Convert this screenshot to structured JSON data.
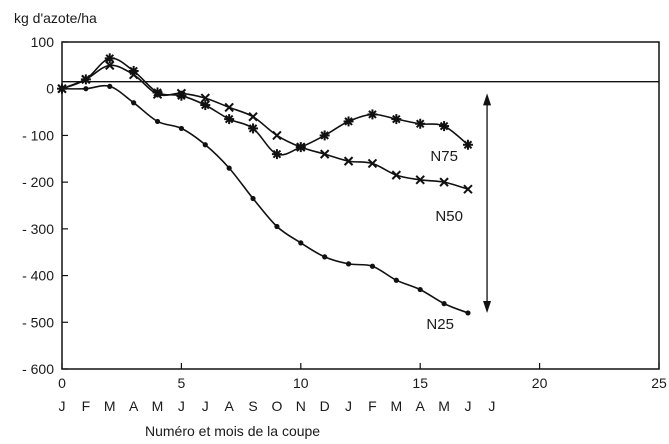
{
  "chart_data": {
    "type": "line",
    "title": "",
    "ylabel": "kg d'azote/ha",
    "xlabel": "Numéro et mois de la coupe",
    "xlim": [
      0,
      25
    ],
    "ylim": [
      -600,
      100
    ],
    "xticks": [
      0,
      5,
      10,
      15,
      20,
      25
    ],
    "yticks": [
      100,
      0,
      -100,
      -200,
      -300,
      -400,
      -500,
      -600
    ],
    "ytick_labels": [
      "100",
      "0",
      "- 100",
      "- 200",
      "- 300",
      "- 400",
      "- 500",
      "- 600"
    ],
    "months": [
      "J",
      "F",
      "M",
      "A",
      "M",
      "J",
      "J",
      "A",
      "S",
      "O",
      "N",
      "D",
      "J",
      "F",
      "M",
      "A",
      "M",
      "J",
      "J"
    ],
    "reference_line_y": 15,
    "range_arrow": {
      "x": 17.8,
      "y_top": -10,
      "y_bottom": -480
    },
    "grid": false,
    "series": [
      {
        "name": "N75",
        "marker": "star",
        "x": [
          0,
          1,
          2,
          3,
          4,
          5,
          6,
          7,
          8,
          9,
          10,
          11,
          12,
          13,
          14,
          15,
          16,
          17
        ],
        "y": [
          0,
          20,
          65,
          38,
          -8,
          -15,
          -35,
          -65,
          -85,
          -140,
          -125,
          -100,
          -70,
          -55,
          -65,
          -75,
          -80,
          -120
        ]
      },
      {
        "name": "N50",
        "marker": "cross",
        "x": [
          0,
          1,
          2,
          3,
          4,
          5,
          6,
          7,
          8,
          9,
          10,
          11,
          12,
          13,
          14,
          15,
          16,
          17
        ],
        "y": [
          0,
          20,
          50,
          30,
          -12,
          -10,
          -20,
          -40,
          -60,
          -100,
          -125,
          -140,
          -155,
          -160,
          -185,
          -195,
          -200,
          -215
        ]
      },
      {
        "name": "N25",
        "marker": "dot",
        "x": [
          0,
          1,
          2,
          3,
          4,
          5,
          6,
          7,
          8,
          9,
          10,
          11,
          12,
          13,
          14,
          15,
          16,
          17
        ],
        "y": [
          0,
          0,
          5,
          -30,
          -70,
          -85,
          -120,
          -170,
          -235,
          -295,
          -330,
          -360,
          -375,
          -380,
          -410,
          -430,
          -460,
          -480
        ]
      }
    ]
  }
}
